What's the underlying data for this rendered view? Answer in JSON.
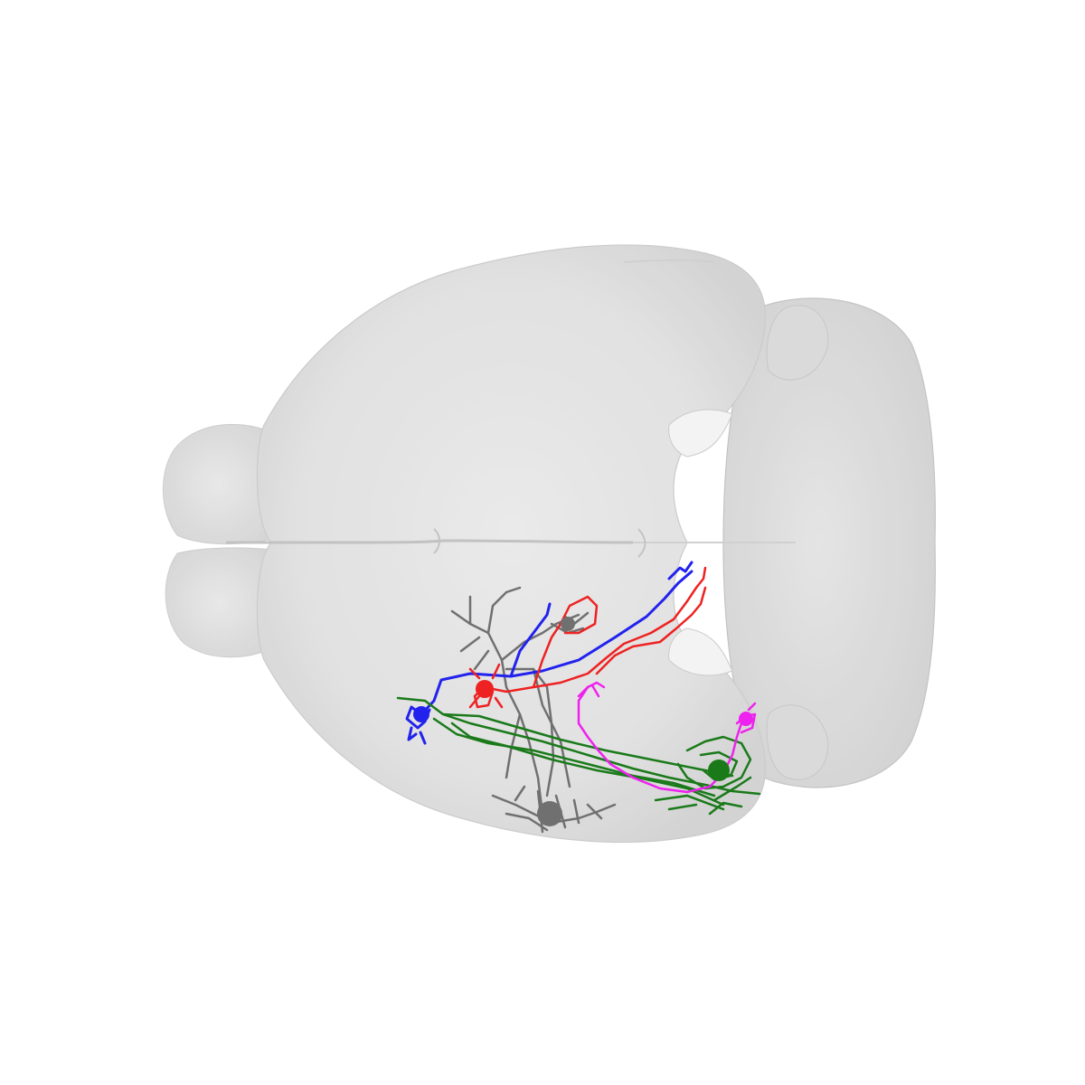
{
  "scene": {
    "background": "#ffffff",
    "brain_fill": "#dcdcdc",
    "brain_edge": "#c4c4c4",
    "neurons": [
      {
        "id": "blue-neuron",
        "color": "#2222ee"
      },
      {
        "id": "red-neuron",
        "color": "#ee2222"
      },
      {
        "id": "gray-neuron",
        "color": "#707070"
      },
      {
        "id": "green-neuron",
        "color": "#1a7a1a"
      },
      {
        "id": "magenta-neuron",
        "color": "#ee22ee"
      }
    ]
  }
}
